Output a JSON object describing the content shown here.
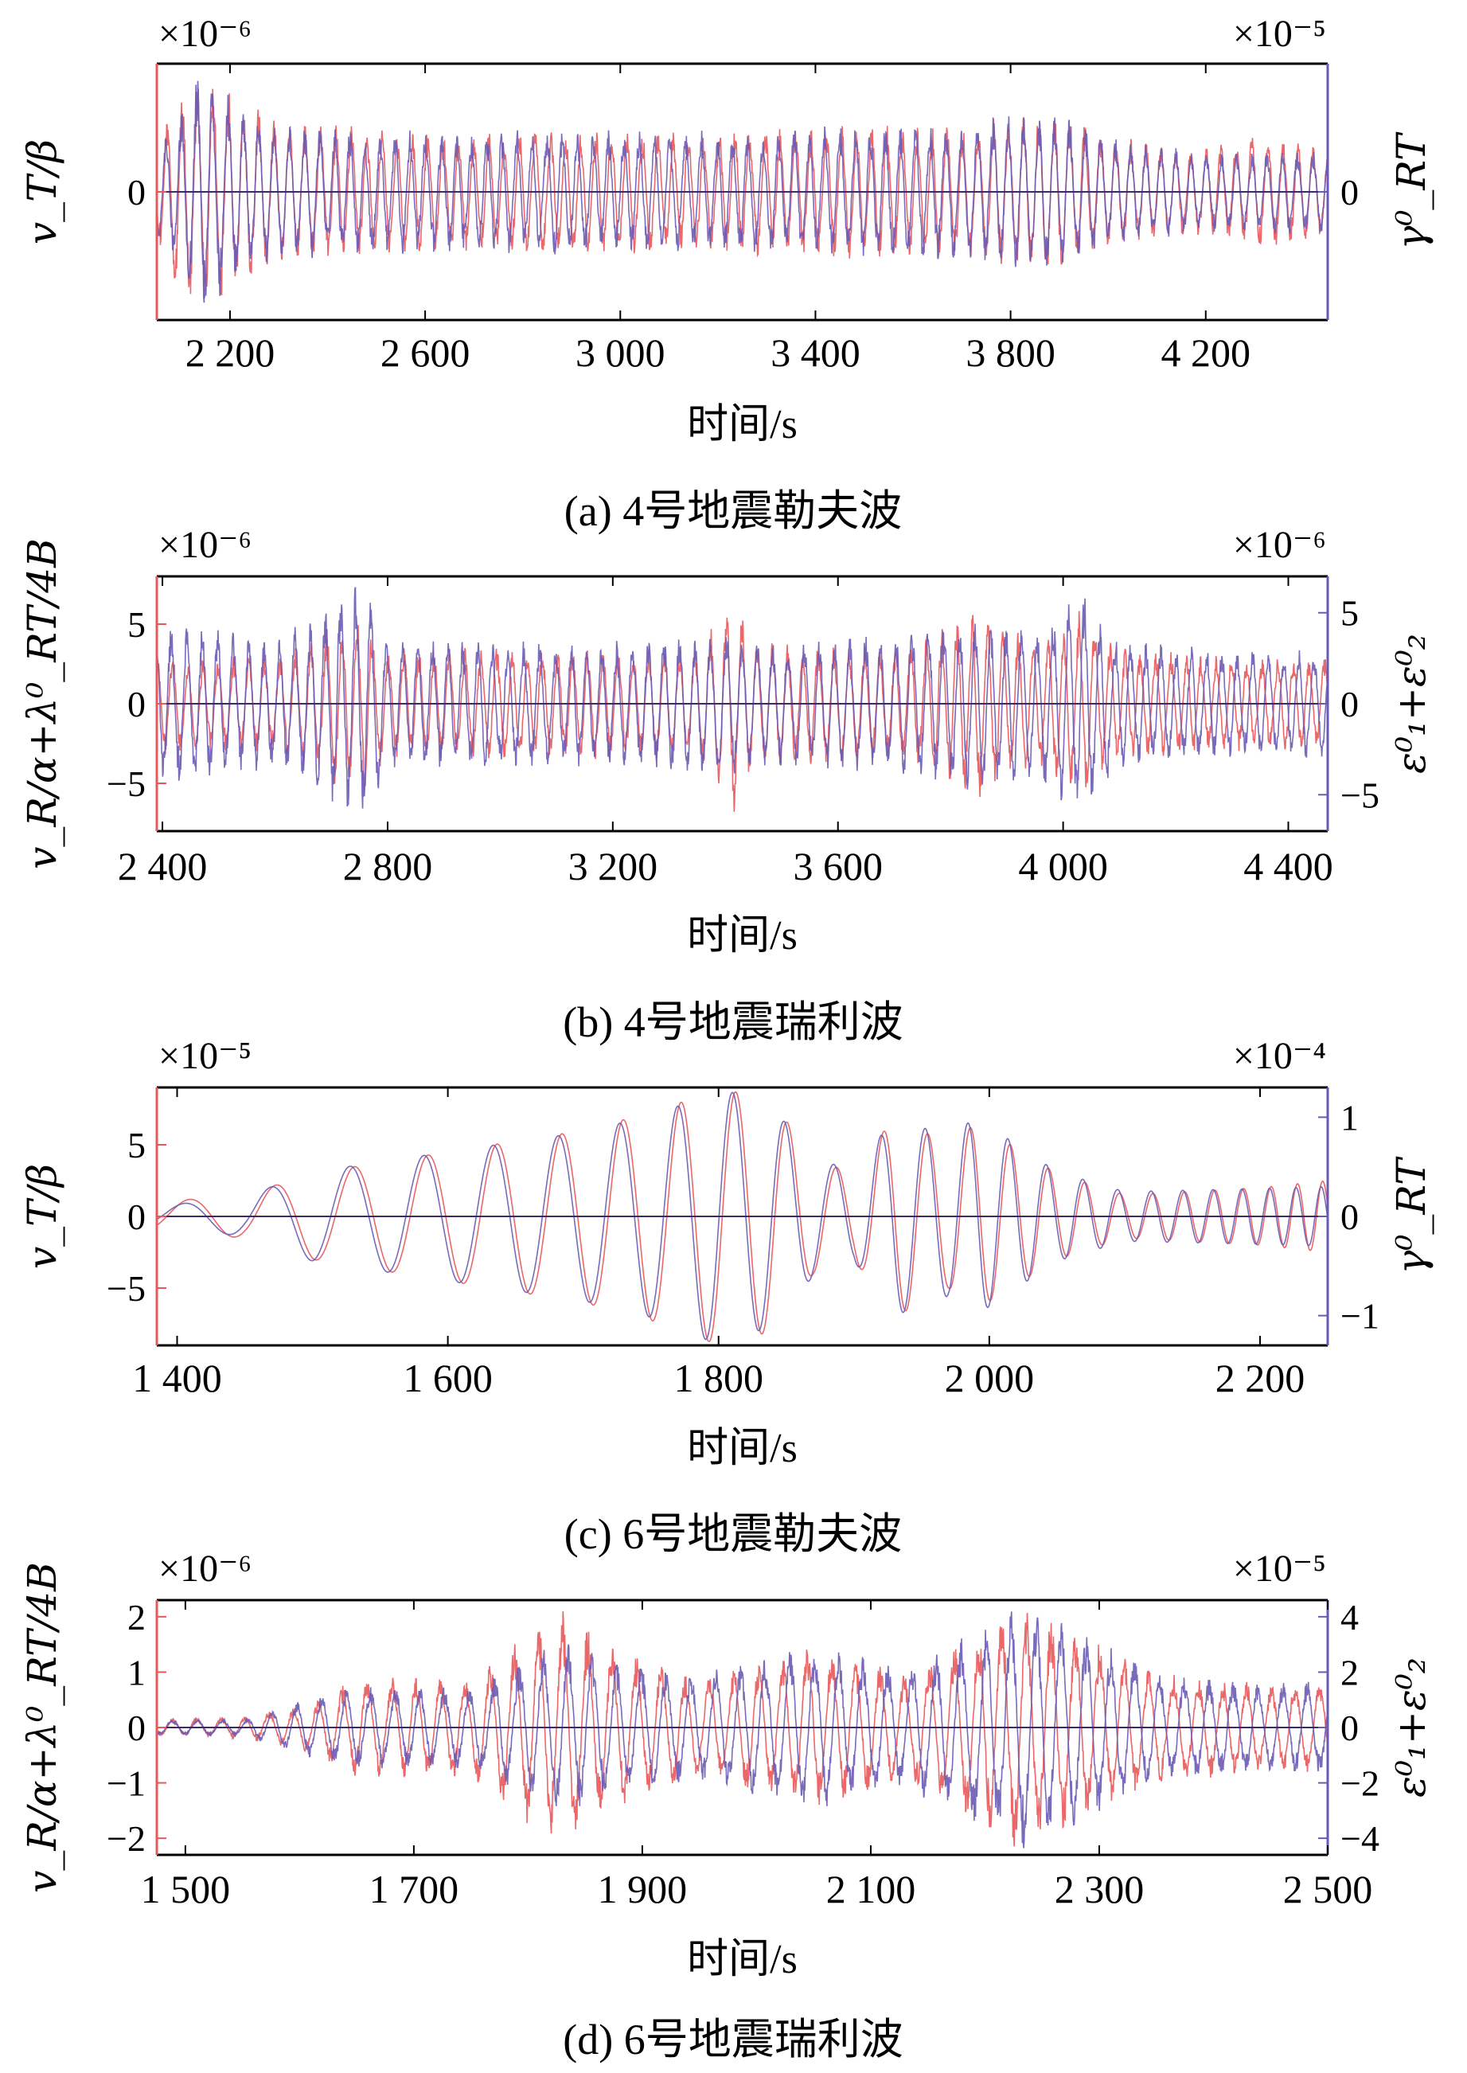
{
  "chart_data": [
    {
      "type": "line",
      "caption": "(a) 4号地震勒夫波",
      "xlabel": "时间/s",
      "ylabel_left": "v_T/β",
      "ylabel_right": "γ⁰_RT",
      "scale_left": "×10⁻⁶",
      "scale_right": "×10⁻⁵",
      "xlim": [
        2050,
        4450
      ],
      "xticks": [
        2200,
        2600,
        3000,
        3400,
        3800,
        4200
      ],
      "xtick_labels": [
        "2 200",
        "2 600",
        "3 000",
        "3 400",
        "3 800",
        "4 200"
      ],
      "ylim_left": [
        -1.6,
        1.6
      ],
      "yticks_left": [
        0
      ],
      "ytick_labels_left": [
        "0"
      ],
      "ylim_right": [
        -1.6,
        1.6
      ],
      "yticks_right": [
        0
      ],
      "ytick_labels_right": [
        "0"
      ],
      "series": [
        {
          "name": "v_T/β",
          "axis": "left",
          "color": "#e8585a",
          "period": 32,
          "seed": 1,
          "envelope": [
            [
              2050,
              0.6
            ],
            [
              2090,
              1.2
            ],
            [
              2150,
              1.6
            ],
            [
              2200,
              1.3
            ],
            [
              2300,
              0.9
            ],
            [
              2500,
              0.8
            ],
            [
              2700,
              0.75
            ],
            [
              2900,
              0.8
            ],
            [
              3100,
              0.75
            ],
            [
              3300,
              0.8
            ],
            [
              3500,
              0.85
            ],
            [
              3700,
              0.85
            ],
            [
              3800,
              1.0
            ],
            [
              3900,
              1.05
            ],
            [
              4000,
              0.7
            ],
            [
              4200,
              0.55
            ],
            [
              4320,
              0.75
            ],
            [
              4450,
              0.6
            ]
          ]
        },
        {
          "name": "γ⁰_RT",
          "axis": "right",
          "color": "#6a5ab4",
          "period": 32,
          "seed": 2,
          "envelope": [
            [
              2050,
              0.6
            ],
            [
              2100,
              1.1
            ],
            [
              2140,
              1.6
            ],
            [
              2200,
              1.2
            ],
            [
              2300,
              0.85
            ],
            [
              2500,
              0.8
            ],
            [
              2700,
              0.75
            ],
            [
              2900,
              0.8
            ],
            [
              3100,
              0.75
            ],
            [
              3300,
              0.8
            ],
            [
              3500,
              0.85
            ],
            [
              3700,
              0.85
            ],
            [
              3800,
              1.0
            ],
            [
              3900,
              1.0
            ],
            [
              4000,
              0.7
            ],
            [
              4200,
              0.5
            ],
            [
              4450,
              0.55
            ]
          ]
        }
      ]
    },
    {
      "type": "line",
      "caption": "(b) 4号地震瑞利波",
      "xlabel": "时间/s",
      "ylabel_left": "v_R/α+λ⁰_RT/4B",
      "ylabel_right": "ε⁰₁+ε⁰₂",
      "scale_left": "×10⁻⁶",
      "scale_right": "×10⁻⁶",
      "xlim": [
        2390,
        4470
      ],
      "xticks": [
        2400,
        2800,
        3200,
        3600,
        4000,
        4400
      ],
      "xtick_labels": [
        "2 400",
        "2 800",
        "3 200",
        "3 600",
        "4 000",
        "4 400"
      ],
      "ylim_left": [
        -8,
        8
      ],
      "yticks_left": [
        -5,
        0,
        5
      ],
      "ytick_labels_left": [
        "−5",
        "0",
        "5"
      ],
      "ylim_right": [
        -7,
        7
      ],
      "yticks_right": [
        -5,
        0,
        5
      ],
      "ytick_labels_right": [
        "−5",
        "0",
        "5"
      ],
      "series": [
        {
          "name": "v_R/α+λ⁰_RT/4B",
          "axis": "left",
          "color": "#e8585a",
          "period": 28,
          "seed": 3,
          "envelope": [
            [
              2390,
              3.5
            ],
            [
              2450,
              3.0
            ],
            [
              2600,
              3.0
            ],
            [
              2750,
              6.0
            ],
            [
              2800,
              3.5
            ],
            [
              3000,
              3.5
            ],
            [
              3200,
              3.5
            ],
            [
              3350,
              3.5
            ],
            [
              3420,
              7.5
            ],
            [
              3450,
              4.0
            ],
            [
              3700,
              3.5
            ],
            [
              3850,
              6.0
            ],
            [
              3950,
              4.0
            ],
            [
              4030,
              6.0
            ],
            [
              4100,
              3.5
            ],
            [
              4300,
              3.0
            ],
            [
              4470,
              3.0
            ]
          ]
        },
        {
          "name": "ε⁰₁+ε⁰₂",
          "axis": "right",
          "color": "#6a5ab4",
          "period": 28,
          "seed": 4,
          "envelope": [
            [
              2390,
              4.5
            ],
            [
              2450,
              4.5
            ],
            [
              2600,
              3.5
            ],
            [
              2750,
              7.0
            ],
            [
              2800,
              4.0
            ],
            [
              3000,
              3.5
            ],
            [
              3200,
              3.5
            ],
            [
              3400,
              4.0
            ],
            [
              3500,
              3.5
            ],
            [
              3700,
              4.0
            ],
            [
              3850,
              5.0
            ],
            [
              3950,
              4.0
            ],
            [
              4030,
              6.5
            ],
            [
              4100,
              3.5
            ],
            [
              4300,
              3.0
            ],
            [
              4470,
              3.0
            ]
          ]
        }
      ]
    },
    {
      "type": "line",
      "caption": "(c) 6号地震勒夫波",
      "xlabel": "时间/s",
      "ylabel_left": "v_T/β",
      "ylabel_right": "γ⁰_RT",
      "scale_left": "×10⁻⁵",
      "scale_right": "×10⁻⁴",
      "xlim": [
        1385,
        2250
      ],
      "xticks": [
        1400,
        1600,
        1800,
        2000,
        2200
      ],
      "xtick_labels": [
        "1 400",
        "1 600",
        "1 800",
        "2 000",
        "2 200"
      ],
      "ylim_left": [
        -9,
        9
      ],
      "yticks_left": [
        -5,
        0,
        5
      ],
      "ytick_labels_left": [
        "−5",
        "0",
        "5"
      ],
      "ylim_right": [
        -1.3,
        1.3
      ],
      "yticks_right": [
        -1,
        0,
        1
      ],
      "ytick_labels_right": [
        "−1",
        "0",
        "1"
      ],
      "series": [
        {
          "name": "v_T/β",
          "axis": "left",
          "color": "#e8585a",
          "chirp": true,
          "seed": 5,
          "envelope": [
            [
              1385,
              1.0
            ],
            [
              1450,
              1.5
            ],
            [
              1500,
              3.0
            ],
            [
              1600,
              4.5
            ],
            [
              1700,
              6.0
            ],
            [
              1760,
              7.5
            ],
            [
              1800,
              9.0
            ],
            [
              1840,
              8.0
            ],
            [
              1870,
              4.0
            ],
            [
              1900,
              3.0
            ],
            [
              1930,
              7.0
            ],
            [
              1970,
              5.0
            ],
            [
              1990,
              6.5
            ],
            [
              2050,
              3.0
            ],
            [
              2100,
              1.5
            ],
            [
              2200,
              2.0
            ],
            [
              2250,
              2.5
            ]
          ]
        },
        {
          "name": "γ⁰_RT",
          "axis": "right",
          "color": "#6a5ab4",
          "chirp": true,
          "seed": 6,
          "envelope": [
            [
              1385,
              0.1
            ],
            [
              1450,
              0.2
            ],
            [
              1500,
              0.45
            ],
            [
              1600,
              0.65
            ],
            [
              1700,
              0.85
            ],
            [
              1760,
              1.05
            ],
            [
              1800,
              1.3
            ],
            [
              1840,
              1.1
            ],
            [
              1870,
              0.6
            ],
            [
              1900,
              0.45
            ],
            [
              1930,
              1.0
            ],
            [
              1970,
              0.8
            ],
            [
              1990,
              1.0
            ],
            [
              2050,
              0.45
            ],
            [
              2100,
              0.25
            ],
            [
              2200,
              0.28
            ],
            [
              2250,
              0.3
            ]
          ]
        }
      ]
    },
    {
      "type": "line",
      "caption": "(d) 6号地震瑞利波",
      "xlabel": "时间/s",
      "ylabel_left": "v_R/α+λ⁰_RT/4B",
      "ylabel_right": "ε⁰₁+ε⁰₂",
      "scale_left": "×10⁻⁶",
      "scale_right": "×10⁻⁵",
      "xlim": [
        1475,
        2500
      ],
      "xticks": [
        1500,
        1700,
        1900,
        2100,
        2300,
        2500
      ],
      "xtick_labels": [
        "1 500",
        "1 700",
        "1 900",
        "2 100",
        "2 300",
        "2 500"
      ],
      "ylim_left": [
        -2.3,
        2.3
      ],
      "yticks_left": [
        -2,
        -1,
        0,
        1,
        2
      ],
      "ytick_labels_left": [
        "−2",
        "−1",
        "0",
        "1",
        "2"
      ],
      "ylim_right": [
        -4.6,
        4.6
      ],
      "yticks_right": [
        -4,
        -2,
        0,
        2,
        4
      ],
      "ytick_labels_right": [
        "−4",
        "−2",
        "0",
        "2",
        "4"
      ],
      "series": [
        {
          "name": "v_R/α+λ⁰_RT/4B",
          "axis": "left",
          "color": "#e8585a",
          "period": 22,
          "seed": 7,
          "envelope": [
            [
              1475,
              0.15
            ],
            [
              1550,
              0.2
            ],
            [
              1600,
              0.4
            ],
            [
              1650,
              0.9
            ],
            [
              1750,
              1.0
            ],
            [
              1830,
              2.2
            ],
            [
              1870,
              1.5
            ],
            [
              1950,
              0.9
            ],
            [
              2050,
              1.5
            ],
            [
              2130,
              1.0
            ],
            [
              2200,
              1.8
            ],
            [
              2230,
              2.3
            ],
            [
              2300,
              1.6
            ],
            [
              2350,
              1.0
            ],
            [
              2450,
              0.8
            ],
            [
              2500,
              0.9
            ]
          ]
        },
        {
          "name": "ε⁰₁+ε⁰₂",
          "axis": "right",
          "color": "#6a5ab4",
          "period": 22,
          "seed": 8,
          "envelope": [
            [
              1475,
              0.3
            ],
            [
              1550,
              0.3
            ],
            [
              1600,
              1.0
            ],
            [
              1650,
              1.5
            ],
            [
              1750,
              1.5
            ],
            [
              1830,
              3.2
            ],
            [
              1870,
              2.5
            ],
            [
              1950,
              2.0
            ],
            [
              2050,
              3.0
            ],
            [
              2130,
              2.2
            ],
            [
              2200,
              3.8
            ],
            [
              2230,
              4.6
            ],
            [
              2300,
              3.3
            ],
            [
              2350,
              2.0
            ],
            [
              2450,
              1.6
            ],
            [
              2500,
              1.8
            ]
          ]
        }
      ]
    }
  ]
}
